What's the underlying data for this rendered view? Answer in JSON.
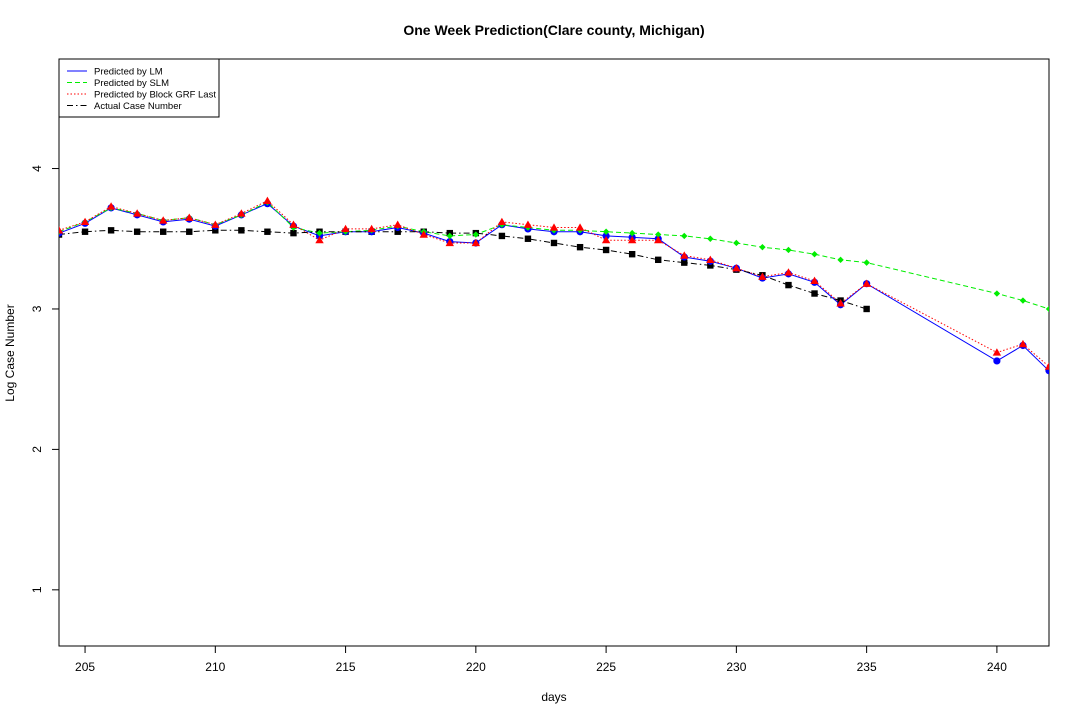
{
  "chart_data": {
    "type": "line",
    "title": "One Week Prediction(Clare county, Michigan)",
    "xlabel": "days",
    "ylabel": "Log Case Number",
    "xlim": [
      204,
      242
    ],
    "ylim": [
      0.6,
      4.78
    ],
    "xticks": [
      205,
      210,
      215,
      220,
      225,
      230,
      235,
      240
    ],
    "yticks": [
      1,
      2,
      3,
      4
    ],
    "legend_position": "top-left",
    "series": [
      {
        "name": "Predicted by LM",
        "color": "#0000ff",
        "line_style": "solid",
        "marker": "circle",
        "x": [
          204,
          205,
          206,
          207,
          208,
          209,
          210,
          211,
          212,
          213,
          214,
          215,
          216,
          217,
          218,
          219,
          220,
          221,
          222,
          223,
          224,
          225,
          226,
          227,
          228,
          229,
          230,
          231,
          232,
          233,
          234,
          235,
          240,
          241,
          242
        ],
        "y": [
          3.54,
          3.61,
          3.72,
          3.67,
          3.62,
          3.64,
          3.59,
          3.67,
          3.75,
          3.59,
          3.52,
          3.55,
          3.55,
          3.58,
          3.54,
          3.48,
          3.47,
          3.6,
          3.57,
          3.55,
          3.55,
          3.52,
          3.51,
          3.5,
          3.37,
          3.34,
          3.29,
          3.22,
          3.25,
          3.19,
          3.03,
          3.18,
          2.63,
          2.74,
          2.56
        ]
      },
      {
        "name": "Predicted by SLM",
        "color": "#00ee00",
        "line_style": "dashed",
        "marker": "diamond",
        "x": [
          204,
          205,
          206,
          207,
          208,
          209,
          210,
          211,
          212,
          213,
          214,
          215,
          216,
          217,
          218,
          219,
          220,
          221,
          222,
          223,
          224,
          225,
          226,
          227,
          228,
          229,
          230,
          231,
          232,
          233,
          234,
          235,
          240,
          241,
          242
        ],
        "y": [
          3.55,
          3.62,
          3.72,
          3.68,
          3.63,
          3.65,
          3.6,
          3.67,
          3.76,
          3.58,
          3.54,
          3.55,
          3.56,
          3.59,
          3.55,
          3.52,
          3.53,
          3.6,
          3.58,
          3.56,
          3.56,
          3.55,
          3.54,
          3.53,
          3.52,
          3.5,
          3.47,
          3.44,
          3.42,
          3.39,
          3.35,
          3.33,
          3.11,
          3.06,
          3.0
        ]
      },
      {
        "name": "Predicted by Block GRF Last",
        "color": "#ff0000",
        "line_style": "dotted",
        "marker": "triangle",
        "x": [
          204,
          205,
          206,
          207,
          208,
          209,
          210,
          211,
          212,
          213,
          214,
          215,
          216,
          217,
          218,
          219,
          220,
          221,
          222,
          223,
          224,
          225,
          226,
          227,
          228,
          229,
          230,
          231,
          232,
          233,
          234,
          235,
          240,
          241,
          242
        ],
        "y": [
          3.56,
          3.62,
          3.73,
          3.68,
          3.63,
          3.65,
          3.6,
          3.68,
          3.77,
          3.6,
          3.49,
          3.57,
          3.57,
          3.6,
          3.53,
          3.47,
          3.47,
          3.62,
          3.6,
          3.58,
          3.58,
          3.49,
          3.49,
          3.49,
          3.38,
          3.35,
          3.29,
          3.23,
          3.26,
          3.2,
          3.04,
          3.18,
          2.69,
          2.75,
          2.59
        ]
      },
      {
        "name": "Actual Case Number",
        "color": "#000000",
        "line_style": "dashdot",
        "marker": "square",
        "x": [
          204,
          205,
          206,
          207,
          208,
          209,
          210,
          211,
          212,
          213,
          214,
          215,
          216,
          217,
          218,
          219,
          220,
          221,
          222,
          223,
          224,
          225,
          226,
          227,
          228,
          229,
          230,
          231,
          232,
          233,
          234,
          235
        ],
        "y": [
          3.53,
          3.55,
          3.56,
          3.55,
          3.55,
          3.55,
          3.56,
          3.56,
          3.55,
          3.54,
          3.55,
          3.55,
          3.55,
          3.55,
          3.55,
          3.54,
          3.54,
          3.52,
          3.5,
          3.47,
          3.44,
          3.42,
          3.39,
          3.35,
          3.33,
          3.31,
          3.28,
          3.24,
          3.17,
          3.11,
          3.06,
          3.0
        ]
      }
    ]
  }
}
